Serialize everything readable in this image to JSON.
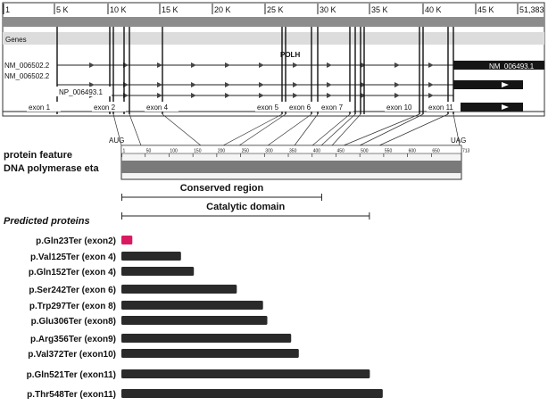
{
  "genome_track": {
    "ticks": [
      "1",
      "5 K",
      "10 K",
      "15 K",
      "20 K",
      "25 K",
      "30 K",
      "35 K",
      "40 K",
      "45 K",
      "51,383"
    ],
    "genes_label": "Genes",
    "gene_name": "POLH",
    "transcripts": [
      {
        "left": "NM_006502.2",
        "right": "NM_006493.1"
      },
      {
        "left": "NM_006502.2",
        "right": ""
      },
      {
        "left": "NP_006493.1",
        "right": ""
      }
    ],
    "exons": [
      "exon 1",
      "exon 2",
      "exon 4",
      "exon 5",
      "exon 6",
      "exon 7",
      "exon 10",
      "exon 11"
    ]
  },
  "protein_axis": {
    "start_codon": "AUG",
    "stop_codon": "UAG",
    "ticks": [
      "1",
      "50",
      "100",
      "150",
      "200",
      "250",
      "300",
      "350",
      "400",
      "450",
      "500",
      "550",
      "600",
      "650",
      "713"
    ],
    "length": 713
  },
  "protein_feature": {
    "label": "protein feature",
    "name": "DNA polymerase eta"
  },
  "domains": [
    {
      "name": "Conserved region",
      "start": 1,
      "end": 420
    },
    {
      "name": "Catalytic domain",
      "start": 1,
      "end": 520
    }
  ],
  "predicted_title": "Predicted proteins",
  "proteins": [
    {
      "label": "p.Gln23Ter (exon2)",
      "length": 23,
      "color": "#d81b60"
    },
    {
      "label": "p.Val125Ter (exon 4)",
      "length": 125,
      "color": "#2a2a2a"
    },
    {
      "label": "p.Gln152Ter (exon 4)",
      "length": 152,
      "color": "#2a2a2a"
    },
    {
      "label": "p.Ser242Ter (exon 6)",
      "length": 242,
      "color": "#2a2a2a"
    },
    {
      "label": "p.Trp297Ter (exon 8)",
      "length": 297,
      "color": "#2a2a2a"
    },
    {
      "label": "p.Glu306Ter (exon8)",
      "length": 306,
      "color": "#2a2a2a"
    },
    {
      "label": "p.Arg356Ter (exon9)",
      "length": 356,
      "color": "#2a2a2a"
    },
    {
      "label": "p.Val372Ter (exon10)",
      "length": 372,
      "color": "#2a2a2a"
    },
    {
      "label": "p.Gln521Ter (exon11)",
      "length": 521,
      "color": "#2a2a2a"
    },
    {
      "label": "p.Thr548Ter (exon11)",
      "length": 548,
      "color": "#2a2a2a"
    }
  ]
}
